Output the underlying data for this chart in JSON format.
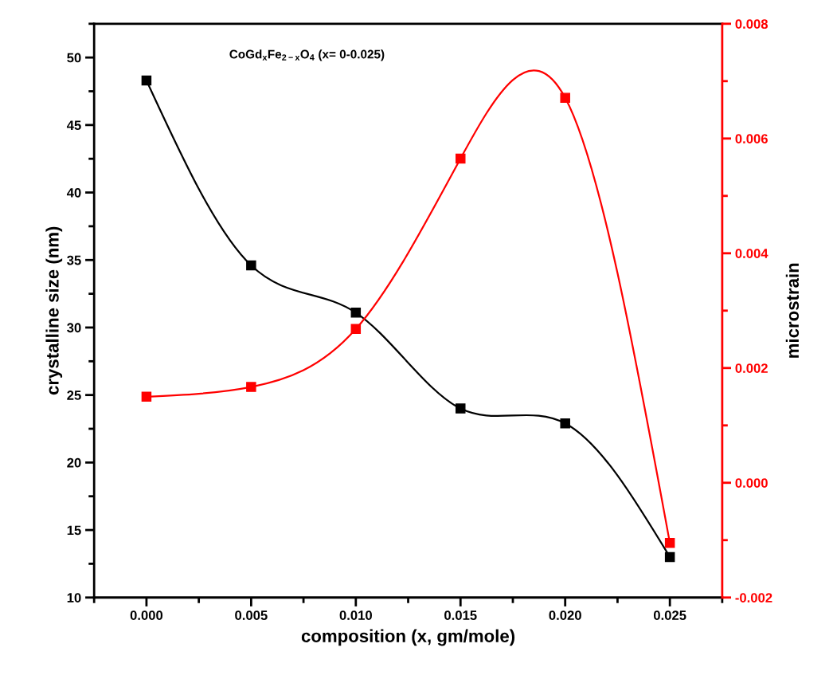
{
  "chart_data": {
    "type": "line",
    "xlabel": "composition (x, gm/mole)",
    "ylabel": "crystalline size (nm)",
    "y2label": "microstrain",
    "annotations": [
      "CoGd$_{x}$Fe$_{2−x}$O$_{4}$ (x= 0-0.025)"
    ],
    "x": [
      0.0,
      0.005,
      0.01,
      0.015,
      0.02,
      0.025
    ],
    "series": [
      {
        "color": "#000000",
        "values": [
          48.3,
          34.6,
          31.1,
          24.0,
          22.9,
          13.0
        ]
      },
      {
        "color": "#ff0000",
        "axis": "y2",
        "values": [
          0.0015,
          0.00167,
          0.00268,
          0.00565,
          0.00671,
          -0.00105
        ]
      }
    ],
    "marker": "square",
    "line_style": "solid",
    "grid": false,
    "legend": false,
    "xlim": [
      -0.0025,
      0.0275
    ],
    "xticks": [
      {
        "value": 0.0,
        "label": "0.000"
      },
      {
        "value": 0.005,
        "label": "0.005"
      },
      {
        "value": 0.01,
        "label": "0.010"
      },
      {
        "value": 0.015,
        "label": "0.015"
      },
      {
        "value": 0.02,
        "label": "0.020"
      },
      {
        "value": 0.025,
        "label": "0.025"
      }
    ],
    "ylim": [
      10,
      52.5
    ],
    "yticks": [
      10,
      15,
      20,
      25,
      30,
      35,
      40,
      45,
      50
    ],
    "y2lim": [
      -0.002,
      0.008
    ],
    "y2ticks": [
      {
        "value": -0.002,
        "label": "-0.002"
      },
      {
        "value": 0.0,
        "label": "0.000"
      },
      {
        "value": 0.002,
        "label": "0.002"
      },
      {
        "value": 0.004,
        "label": "0.004"
      },
      {
        "value": 0.006,
        "label": "0.006"
      },
      {
        "value": 0.008,
        "label": "0.008"
      }
    ]
  }
}
